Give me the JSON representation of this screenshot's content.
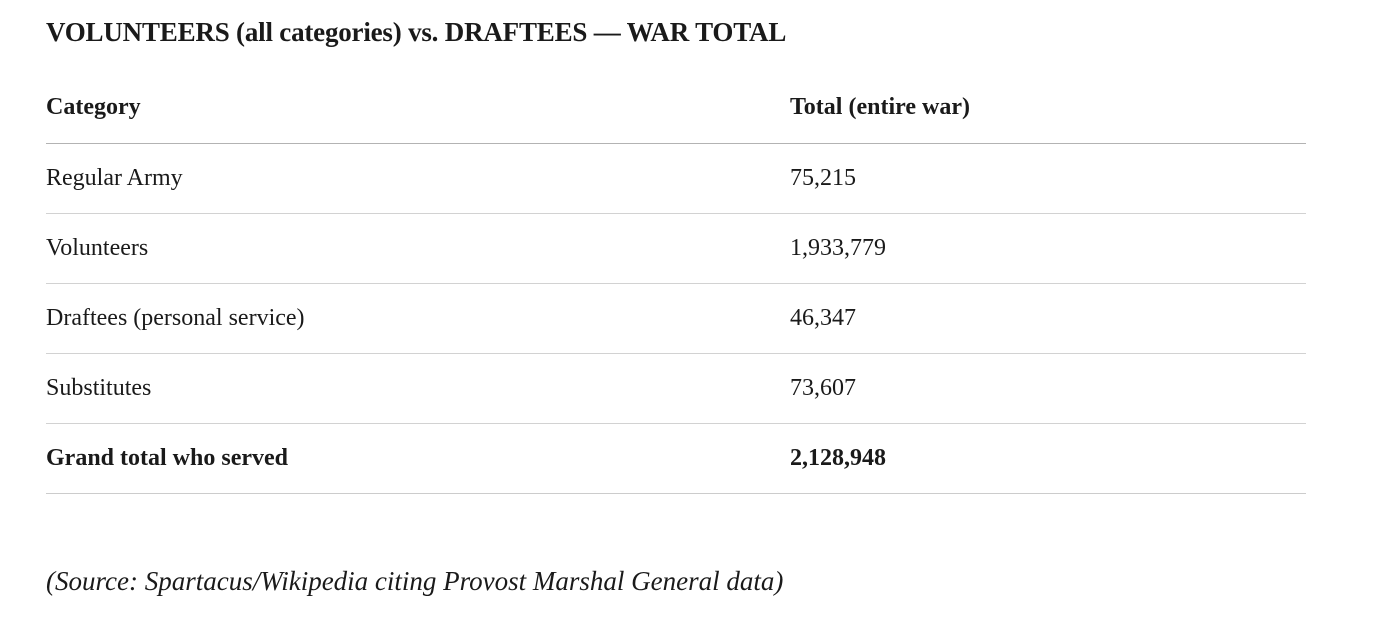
{
  "title": "VOLUNTEERS (all categories) vs. DRAFTEES — WAR TOTAL",
  "table": {
    "headers": [
      "Category",
      "Total (entire war)"
    ],
    "rows": [
      [
        "Regular Army",
        "75,215"
      ],
      [
        "Volunteers",
        "1,933,779"
      ],
      [
        "Draftees (personal service)",
        "46,347"
      ],
      [
        "Substitutes",
        "73,607"
      ]
    ],
    "total_row": [
      "Grand total who served",
      "2,128,948"
    ]
  },
  "source_note": "(Source: Spartacus/Wikipedia citing Provost Marshal General data)"
}
